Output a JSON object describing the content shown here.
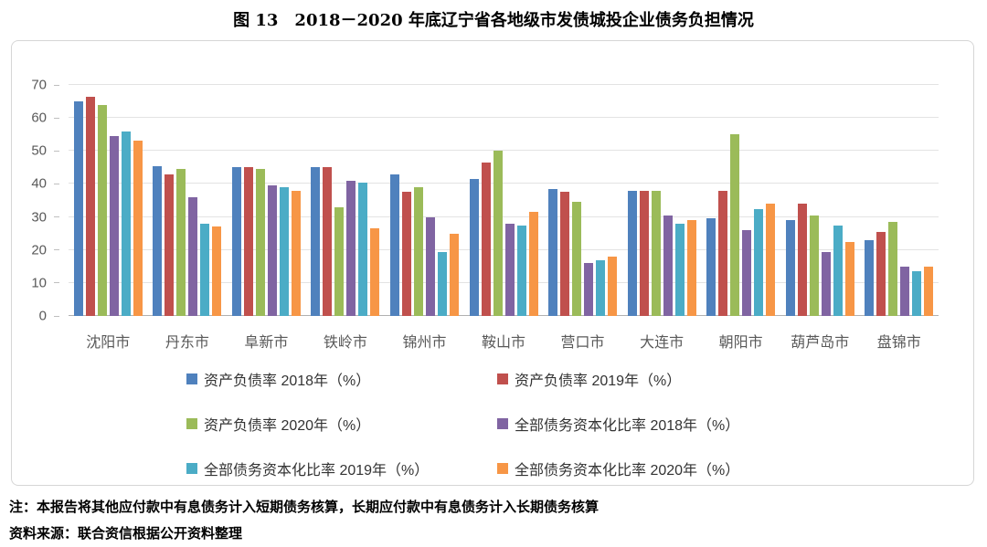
{
  "chart_data": {
    "type": "bar",
    "title": "图 13　2018－2020 年底辽宁省各地级市发债城投企业债务负担情况",
    "categories": [
      "沈阳市",
      "丹东市",
      "阜新市",
      "铁岭市",
      "锦州市",
      "鞍山市",
      "营口市",
      "大连市",
      "朝阳市",
      "葫芦岛市",
      "盘锦市"
    ],
    "series": [
      {
        "name": "资产负债率 2018年（%）",
        "color": "#4F81BD",
        "values": [
          65.0,
          45.5,
          45.0,
          45.0,
          43.0,
          41.5,
          38.5,
          38.0,
          29.5,
          29.0,
          23.0
        ]
      },
      {
        "name": "资产负债率 2019年（%）",
        "color": "#C0504D",
        "values": [
          66.5,
          43.0,
          45.0,
          45.0,
          37.5,
          46.5,
          37.5,
          38.0,
          38.0,
          34.0,
          25.5
        ]
      },
      {
        "name": "资产负债率 2020年（%）",
        "color": "#9BBB59",
        "values": [
          64.0,
          44.5,
          44.5,
          33.0,
          39.0,
          50.0,
          34.5,
          38.0,
          55.0,
          30.5,
          28.5
        ]
      },
      {
        "name": "全部债务资本化比率 2018年（%）",
        "color": "#8064A2",
        "values": [
          54.5,
          36.0,
          39.5,
          41.0,
          30.0,
          28.0,
          16.0,
          30.5,
          26.0,
          19.5,
          15.0
        ]
      },
      {
        "name": "全部债务资本化比率 2019年（%）",
        "color": "#4BACC6",
        "values": [
          56.0,
          28.0,
          39.0,
          40.5,
          19.5,
          27.5,
          17.0,
          28.0,
          32.5,
          27.5,
          13.5
        ]
      },
      {
        "name": "全部债务资本化比率 2020年（%）",
        "color": "#F79646",
        "values": [
          53.0,
          27.0,
          38.0,
          26.5,
          25.0,
          31.5,
          18.0,
          29.0,
          34.0,
          22.5,
          15.0
        ]
      }
    ],
    "ylim": [
      0,
      70
    ],
    "yticks": [
      0,
      10,
      20,
      30,
      40,
      50,
      60,
      70
    ],
    "grid": "horizontal",
    "legend_position": "bottom"
  },
  "notes": {
    "note": "注：本报告将其他应付款中有息债务计入短期债务核算，长期应付款中有息债务计入长期债务核算",
    "source": "资料来源：联合资信根据公开资料整理"
  }
}
